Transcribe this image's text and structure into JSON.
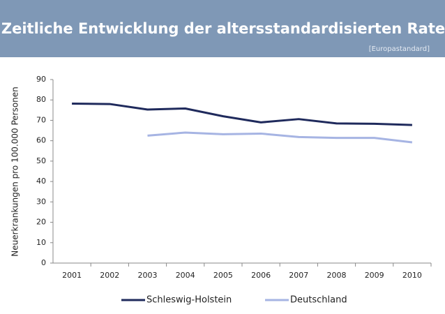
{
  "chart_data": {
    "type": "line",
    "title": "Zeitliche Entwicklung der altersstandardisierten Rate",
    "subtitle": "[Europastandard]",
    "y_label": "Neuerkrankungen pro 100.000 Personen",
    "categories": [
      "2001",
      "2002",
      "2003",
      "2004",
      "2005",
      "2006",
      "2007",
      "2008",
      "2009",
      "2010"
    ],
    "series": [
      {
        "name": "Schleswig-Holstein",
        "color": "#1f2a5c",
        "values": [
          78.2,
          78.0,
          75.3,
          75.8,
          72.0,
          69.0,
          70.6,
          68.5,
          68.3,
          67.7
        ]
      },
      {
        "name": "Deutschland",
        "color": "#a6b4e3",
        "values": [
          null,
          null,
          62.5,
          64.0,
          63.2,
          63.5,
          61.8,
          61.4,
          61.4,
          59.2
        ]
      }
    ],
    "ylim": [
      0,
      90
    ],
    "yticks": [
      0,
      10,
      20,
      30,
      40,
      50,
      60,
      70,
      80,
      90
    ],
    "grid": false,
    "legend": "bottom"
  }
}
